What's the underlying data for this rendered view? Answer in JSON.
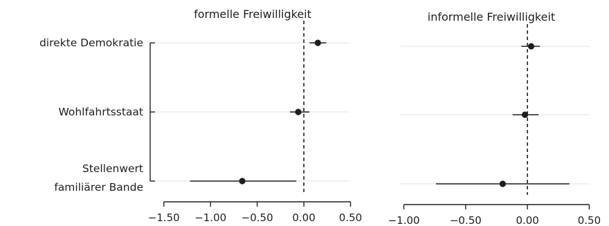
{
  "chart_data": [
    {
      "type": "scatter",
      "title": "formelle Freiwilligkeit",
      "categories": [
        "direkte Demokratie",
        "Wohlfahrtsstaat",
        "Stellenwert familiärer Bande"
      ],
      "category_lines": [
        [
          "direkte Demokratie"
        ],
        [
          "Wohlfahrtsstaat"
        ],
        [
          "Stellenwert",
          "familiärer Bande"
        ]
      ],
      "estimates": [
        0.15,
        -0.06,
        -0.66
      ],
      "ci_low": [
        0.06,
        -0.15,
        -1.22
      ],
      "ci_high": [
        0.24,
        0.06,
        -0.08
      ],
      "xlim": [
        -1.55,
        0.6
      ],
      "xticks": [
        -1.5,
        -1.0,
        -0.5,
        0.0,
        0.5
      ],
      "xtick_labels": [
        "−1.50",
        "−1.00",
        "−0.50",
        "0.00",
        "0.50"
      ],
      "reference_line": 0.0
    },
    {
      "type": "scatter",
      "title": "informelle Freiwilligkeit",
      "categories": [
        "direkte Demokratie",
        "Wohlfahrtsstaat",
        "Stellenwert familiärer Bande"
      ],
      "estimates": [
        0.03,
        -0.02,
        -0.2
      ],
      "ci_low": [
        -0.05,
        -0.12,
        -0.74
      ],
      "ci_high": [
        0.1,
        0.09,
        0.34
      ],
      "xlim": [
        -1.02,
        0.52
      ],
      "xticks": [
        -1.0,
        -0.5,
        0.0,
        0.5
      ],
      "xtick_labels": [
        "−1.00",
        "−0.50",
        "0.00",
        "0.50"
      ],
      "reference_line": 0.0
    }
  ],
  "colors": {
    "ink": "#1e1e1e",
    "grid": "#ececec"
  }
}
